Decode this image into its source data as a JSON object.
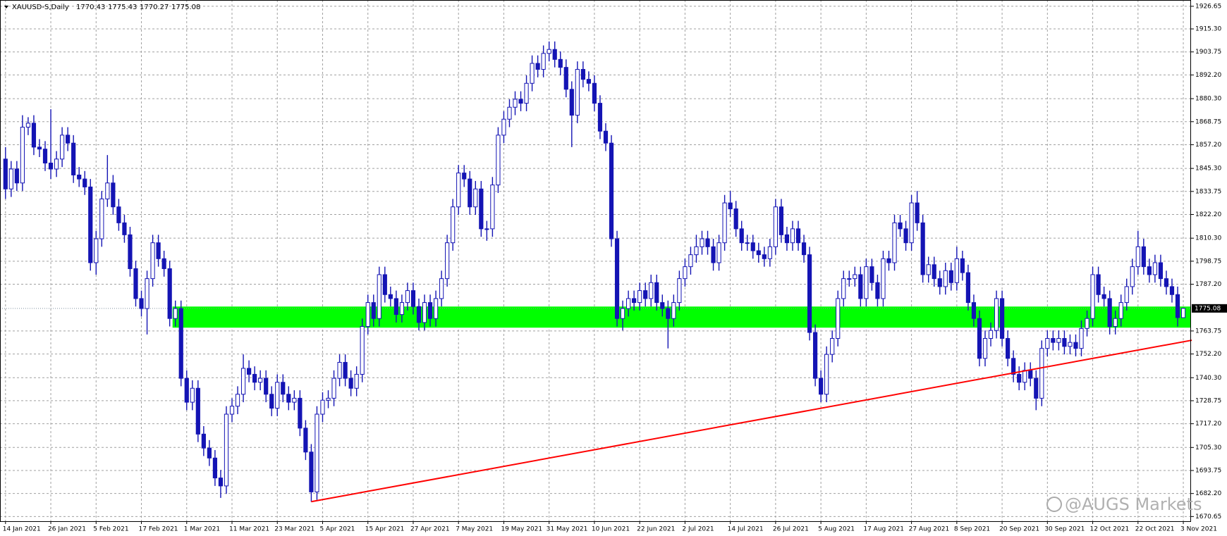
{
  "chart_data": {
    "type": "candlestick",
    "title": "XAUUSD-S,Daily",
    "watermark": "@AUGS Markets",
    "color": "#1414b4",
    "zone_color": "#00ff00",
    "trend_color": "#ff0000",
    "grid": true,
    "ylim": [
      1668.3,
      1929.8
    ],
    "yticks": [
      1926.65,
      {
        "value": 1915.3,
        "label": "1915.30"
      },
      1903.75,
      {
        "value": 1892.2,
        "label": "1892.20"
      },
      {
        "value": 1880.3,
        "label": "1880.30"
      },
      1868.75,
      {
        "value": 1857.2,
        "label": "1857.20"
      },
      {
        "value": 1845.3,
        "label": "1845.30"
      },
      1833.75,
      {
        "value": 1822.2,
        "label": "1822.20"
      },
      {
        "value": 1810.3,
        "label": "1810.30"
      },
      1798.75,
      {
        "value": 1787.2,
        "label": "1787.20"
      },
      1763.75,
      {
        "value": 1752.2,
        "label": "1752.20"
      },
      {
        "value": 1740.3,
        "label": "1740.30"
      },
      1728.75,
      {
        "value": 1717.2,
        "label": "1717.20"
      },
      {
        "value": 1705.3,
        "label": "1705.30"
      },
      1693.75,
      {
        "value": 1682.2,
        "label": "1682.20"
      },
      1670.65
    ],
    "xticks": [
      {
        "value": 0,
        "label": "14 Jan 2021"
      },
      {
        "value": 8,
        "label": "26 Jan 2021"
      },
      {
        "value": 16,
        "label": "5 Feb 2021"
      },
      {
        "value": 24,
        "label": "17 Feb 2021"
      },
      {
        "value": 32,
        "label": "1 Mar 2021"
      },
      {
        "value": 40,
        "label": "11 Mar 2021"
      },
      {
        "value": 48,
        "label": "23 Mar 2021"
      },
      {
        "value": 56,
        "label": "5 Apr 2021"
      },
      {
        "value": 64,
        "label": "15 Apr 2021"
      },
      {
        "value": 72,
        "label": "27 Apr 2021"
      },
      {
        "value": 80,
        "label": "7 May 2021"
      },
      {
        "value": 88,
        "label": "19 May 2021"
      },
      {
        "value": 96,
        "label": "31 May 2021"
      },
      {
        "value": 104,
        "label": "10 Jun 2021"
      },
      {
        "value": 112,
        "label": "22 Jun 2021"
      },
      {
        "value": 120,
        "label": "2 Jul 2021"
      },
      {
        "value": 128,
        "label": "14 Jul 2021"
      },
      {
        "value": 136,
        "label": "26 Jul 2021"
      },
      {
        "value": 144,
        "label": "5 Aug 2021"
      },
      {
        "value": 152,
        "label": "17 Aug 2021"
      },
      {
        "value": 160,
        "label": "27 Aug 2021"
      },
      {
        "value": 168,
        "label": "8 Sep 2021"
      },
      {
        "value": 176,
        "label": "20 Sep 2021"
      },
      {
        "value": 184,
        "label": "30 Sep 2021"
      },
      {
        "value": 192,
        "label": "12 Oct 2021"
      },
      {
        "value": 200,
        "label": "22 Oct 2021"
      },
      {
        "value": 208,
        "label": "3 Nov 2021"
      }
    ],
    "zone": {
      "from_bar": 30,
      "low": 1765.4,
      "high": 1776.0
    },
    "trendline": {
      "x": [
        54,
        209.5
      ],
      "y": [
        1678.1,
        1759.1
      ]
    },
    "candles": [
      [
        1850,
        1856,
        1830,
        1835
      ],
      [
        1835,
        1849,
        1831,
        1845
      ],
      [
        1845,
        1849,
        1834,
        1838
      ],
      [
        1838,
        1872,
        1834,
        1866
      ],
      [
        1866,
        1871,
        1862,
        1868
      ],
      [
        1868,
        1872,
        1852,
        1856
      ],
      [
        1856,
        1860,
        1851,
        1855
      ],
      [
        1855,
        1859,
        1844,
        1848
      ],
      [
        1848,
        1875,
        1840,
        1845
      ],
      [
        1845,
        1854,
        1841,
        1850
      ],
      [
        1850,
        1866,
        1846,
        1862
      ],
      [
        1862,
        1866,
        1854,
        1858
      ],
      [
        1858,
        1862,
        1838,
        1842
      ],
      [
        1842,
        1846,
        1836,
        1840
      ],
      [
        1840,
        1844,
        1832,
        1836
      ],
      [
        1836,
        1840,
        1794,
        1798
      ],
      [
        1798,
        1814,
        1792,
        1810
      ],
      [
        1810,
        1834,
        1806,
        1830
      ],
      [
        1830,
        1852,
        1826,
        1838
      ],
      [
        1838,
        1842,
        1822,
        1826
      ],
      [
        1826,
        1830,
        1814,
        1818
      ],
      [
        1818,
        1822,
        1808,
        1812
      ],
      [
        1812,
        1816,
        1791,
        1795
      ],
      [
        1795,
        1799,
        1776,
        1780
      ],
      [
        1780,
        1784,
        1771,
        1775
      ],
      [
        1775,
        1794,
        1762,
        1790
      ],
      [
        1790,
        1812,
        1786,
        1808
      ],
      [
        1808,
        1812,
        1796,
        1800
      ],
      [
        1800,
        1804,
        1791,
        1795
      ],
      [
        1795,
        1799,
        1766,
        1770
      ],
      [
        1770,
        1779,
        1766,
        1775
      ],
      [
        1775,
        1779,
        1736,
        1740
      ],
      [
        1740,
        1744,
        1724,
        1728
      ],
      [
        1728,
        1739,
        1724,
        1735
      ],
      [
        1735,
        1739,
        1708,
        1712
      ],
      [
        1712,
        1716,
        1701,
        1705
      ],
      [
        1705,
        1709,
        1696,
        1700
      ],
      [
        1700,
        1704,
        1686,
        1690
      ],
      [
        1690,
        1694,
        1680,
        1686
      ],
      [
        1686,
        1726,
        1682,
        1722
      ],
      [
        1722,
        1730,
        1718,
        1726
      ],
      [
        1726,
        1736,
        1722,
        1732
      ],
      [
        1732,
        1752,
        1728,
        1745
      ],
      [
        1745,
        1749,
        1738,
        1742
      ],
      [
        1742,
        1746,
        1734,
        1738
      ],
      [
        1738,
        1744,
        1734,
        1740
      ],
      [
        1740,
        1744,
        1728,
        1732
      ],
      [
        1732,
        1736,
        1721,
        1725
      ],
      [
        1725,
        1742,
        1721,
        1738
      ],
      [
        1738,
        1742,
        1728,
        1732
      ],
      [
        1732,
        1736,
        1724,
        1728
      ],
      [
        1728,
        1734,
        1724,
        1730
      ],
      [
        1730,
        1734,
        1711,
        1715
      ],
      [
        1715,
        1719,
        1699,
        1703
      ],
      [
        1703,
        1707,
        1678,
        1683
      ],
      [
        1683,
        1726,
        1679,
        1722
      ],
      [
        1722,
        1733,
        1718,
        1729
      ],
      [
        1729,
        1734,
        1725,
        1730
      ],
      [
        1730,
        1744,
        1726,
        1740
      ],
      [
        1740,
        1752,
        1736,
        1748
      ],
      [
        1748,
        1752,
        1736,
        1740
      ],
      [
        1740,
        1744,
        1731,
        1735
      ],
      [
        1735,
        1746,
        1731,
        1742
      ],
      [
        1742,
        1770,
        1738,
        1766
      ],
      [
        1766,
        1782,
        1762,
        1778
      ],
      [
        1778,
        1782,
        1766,
        1770
      ],
      [
        1770,
        1796,
        1766,
        1792
      ],
      [
        1792,
        1796,
        1778,
        1782
      ],
      [
        1782,
        1786,
        1776,
        1780
      ],
      [
        1780,
        1784,
        1768,
        1772
      ],
      [
        1772,
        1782,
        1768,
        1778
      ],
      [
        1778,
        1788,
        1774,
        1784
      ],
      [
        1784,
        1788,
        1772,
        1776
      ],
      [
        1776,
        1780,
        1764,
        1768
      ],
      [
        1768,
        1782,
        1764,
        1778
      ],
      [
        1778,
        1782,
        1766,
        1770
      ],
      [
        1770,
        1784,
        1766,
        1780
      ],
      [
        1780,
        1794,
        1776,
        1790
      ],
      [
        1790,
        1812,
        1786,
        1808
      ],
      [
        1808,
        1830,
        1804,
        1826
      ],
      [
        1826,
        1847,
        1822,
        1843
      ],
      [
        1843,
        1847,
        1836,
        1840
      ],
      [
        1840,
        1844,
        1822,
        1826
      ],
      [
        1826,
        1839,
        1822,
        1835
      ],
      [
        1835,
        1839,
        1811,
        1815
      ],
      [
        1815,
        1819,
        1809,
        1815
      ],
      [
        1815,
        1841,
        1811,
        1837
      ],
      [
        1837,
        1866,
        1833,
        1862
      ],
      [
        1862,
        1874,
        1858,
        1870
      ],
      [
        1870,
        1880,
        1866,
        1876
      ],
      [
        1876,
        1884,
        1872,
        1880
      ],
      [
        1880,
        1884,
        1874,
        1878
      ],
      [
        1878,
        1892,
        1874,
        1888
      ],
      [
        1888,
        1902,
        1884,
        1898
      ],
      [
        1898,
        1902,
        1891,
        1895
      ],
      [
        1895,
        1907,
        1891,
        1903
      ],
      [
        1903,
        1909,
        1899,
        1905
      ],
      [
        1905,
        1909,
        1896,
        1900
      ],
      [
        1900,
        1904,
        1892,
        1896
      ],
      [
        1896,
        1900,
        1881,
        1885
      ],
      [
        1885,
        1889,
        1856,
        1872
      ],
      [
        1872,
        1899,
        1868,
        1895
      ],
      [
        1895,
        1899,
        1886,
        1890
      ],
      [
        1890,
        1894,
        1884,
        1888
      ],
      [
        1888,
        1892,
        1874,
        1878
      ],
      [
        1878,
        1882,
        1860,
        1864
      ],
      [
        1864,
        1868,
        1854,
        1858
      ],
      [
        1858,
        1862,
        1806,
        1810
      ],
      [
        1810,
        1814,
        1766,
        1770
      ],
      [
        1770,
        1779,
        1764,
        1775
      ],
      [
        1775,
        1784,
        1771,
        1780
      ],
      [
        1780,
        1784,
        1774,
        1778
      ],
      [
        1778,
        1788,
        1774,
        1784
      ],
      [
        1784,
        1788,
        1776,
        1780
      ],
      [
        1780,
        1792,
        1776,
        1788
      ],
      [
        1788,
        1792,
        1774,
        1778
      ],
      [
        1778,
        1782,
        1771,
        1775
      ],
      [
        1775,
        1779,
        1755,
        1770
      ],
      [
        1770,
        1782,
        1766,
        1778
      ],
      [
        1778,
        1794,
        1774,
        1790
      ],
      [
        1790,
        1800,
        1786,
        1796
      ],
      [
        1796,
        1806,
        1792,
        1802
      ],
      [
        1802,
        1812,
        1798,
        1806
      ],
      [
        1806,
        1814,
        1802,
        1810
      ],
      [
        1810,
        1814,
        1802,
        1806
      ],
      [
        1806,
        1810,
        1794,
        1798
      ],
      [
        1798,
        1812,
        1794,
        1808
      ],
      [
        1808,
        1832,
        1804,
        1828
      ],
      [
        1828,
        1834,
        1821,
        1825
      ],
      [
        1825,
        1829,
        1811,
        1815
      ],
      [
        1815,
        1819,
        1804,
        1808
      ],
      [
        1808,
        1812,
        1804,
        1808
      ],
      [
        1808,
        1812,
        1800,
        1804
      ],
      [
        1804,
        1808,
        1798,
        1802
      ],
      [
        1802,
        1806,
        1796,
        1800
      ],
      [
        1800,
        1810,
        1796,
        1806
      ],
      [
        1806,
        1830,
        1802,
        1826
      ],
      [
        1826,
        1830,
        1808,
        1812
      ],
      [
        1812,
        1816,
        1804,
        1808
      ],
      [
        1808,
        1819,
        1804,
        1815
      ],
      [
        1815,
        1819,
        1804,
        1808
      ],
      [
        1808,
        1812,
        1798,
        1802
      ],
      [
        1802,
        1806,
        1759,
        1763
      ],
      [
        1763,
        1767,
        1736,
        1740
      ],
      [
        1740,
        1744,
        1728,
        1732
      ],
      [
        1732,
        1756,
        1728,
        1752
      ],
      [
        1752,
        1764,
        1748,
        1760
      ],
      [
        1760,
        1784,
        1756,
        1780
      ],
      [
        1780,
        1794,
        1776,
        1790
      ],
      [
        1790,
        1794,
        1786,
        1790
      ],
      [
        1790,
        1796,
        1786,
        1792
      ],
      [
        1792,
        1796,
        1776,
        1780
      ],
      [
        1780,
        1800,
        1776,
        1796
      ],
      [
        1796,
        1800,
        1784,
        1788
      ],
      [
        1788,
        1792,
        1776,
        1780
      ],
      [
        1780,
        1804,
        1776,
        1800
      ],
      [
        1800,
        1804,
        1794,
        1798
      ],
      [
        1798,
        1822,
        1794,
        1818
      ],
      [
        1818,
        1822,
        1811,
        1815
      ],
      [
        1815,
        1819,
        1804,
        1808
      ],
      [
        1808,
        1832,
        1804,
        1828
      ],
      [
        1828,
        1834,
        1814,
        1818
      ],
      [
        1818,
        1822,
        1788,
        1792
      ],
      [
        1792,
        1801,
        1788,
        1797
      ],
      [
        1797,
        1801,
        1786,
        1790
      ],
      [
        1790,
        1794,
        1782,
        1786
      ],
      [
        1786,
        1798,
        1782,
        1794
      ],
      [
        1794,
        1798,
        1784,
        1788
      ],
      [
        1788,
        1806,
        1784,
        1800
      ],
      [
        1800,
        1804,
        1789,
        1793
      ],
      [
        1793,
        1797,
        1774,
        1778
      ],
      [
        1778,
        1782,
        1766,
        1770
      ],
      [
        1770,
        1774,
        1746,
        1750
      ],
      [
        1750,
        1764,
        1746,
        1760
      ],
      [
        1760,
        1768,
        1756,
        1764
      ],
      [
        1764,
        1784,
        1760,
        1780
      ],
      [
        1780,
        1784,
        1756,
        1760
      ],
      [
        1760,
        1764,
        1746,
        1750
      ],
      [
        1750,
        1754,
        1738,
        1742
      ],
      [
        1742,
        1746,
        1734,
        1738
      ],
      [
        1738,
        1748,
        1734,
        1744
      ],
      [
        1744,
        1748,
        1736,
        1740
      ],
      [
        1740,
        1744,
        1724,
        1730
      ],
      [
        1730,
        1759,
        1726,
        1755
      ],
      [
        1755,
        1764,
        1751,
        1760
      ],
      [
        1760,
        1764,
        1754,
        1758
      ],
      [
        1758,
        1764,
        1754,
        1760
      ],
      [
        1760,
        1764,
        1752,
        1756
      ],
      [
        1756,
        1762,
        1752,
        1758
      ],
      [
        1758,
        1762,
        1751,
        1755
      ],
      [
        1755,
        1769,
        1751,
        1765
      ],
      [
        1765,
        1774,
        1761,
        1770
      ],
      [
        1770,
        1796,
        1766,
        1792
      ],
      [
        1792,
        1796,
        1778,
        1782
      ],
      [
        1782,
        1786,
        1776,
        1780
      ],
      [
        1780,
        1784,
        1762,
        1766
      ],
      [
        1766,
        1774,
        1762,
        1770
      ],
      [
        1770,
        1782,
        1766,
        1778
      ],
      [
        1778,
        1790,
        1774,
        1786
      ],
      [
        1786,
        1800,
        1782,
        1796
      ],
      [
        1796,
        1814,
        1792,
        1806
      ],
      [
        1806,
        1810,
        1792,
        1796
      ],
      [
        1796,
        1800,
        1788,
        1792
      ],
      [
        1792,
        1802,
        1788,
        1798
      ],
      [
        1798,
        1802,
        1786,
        1790
      ],
      [
        1790,
        1794,
        1782,
        1786
      ],
      [
        1786,
        1790,
        1778,
        1782
      ],
      [
        1782,
        1786,
        1766,
        1770.43
      ],
      [
        1770.43,
        1775.43,
        1770.27,
        1775.08
      ]
    ]
  }
}
